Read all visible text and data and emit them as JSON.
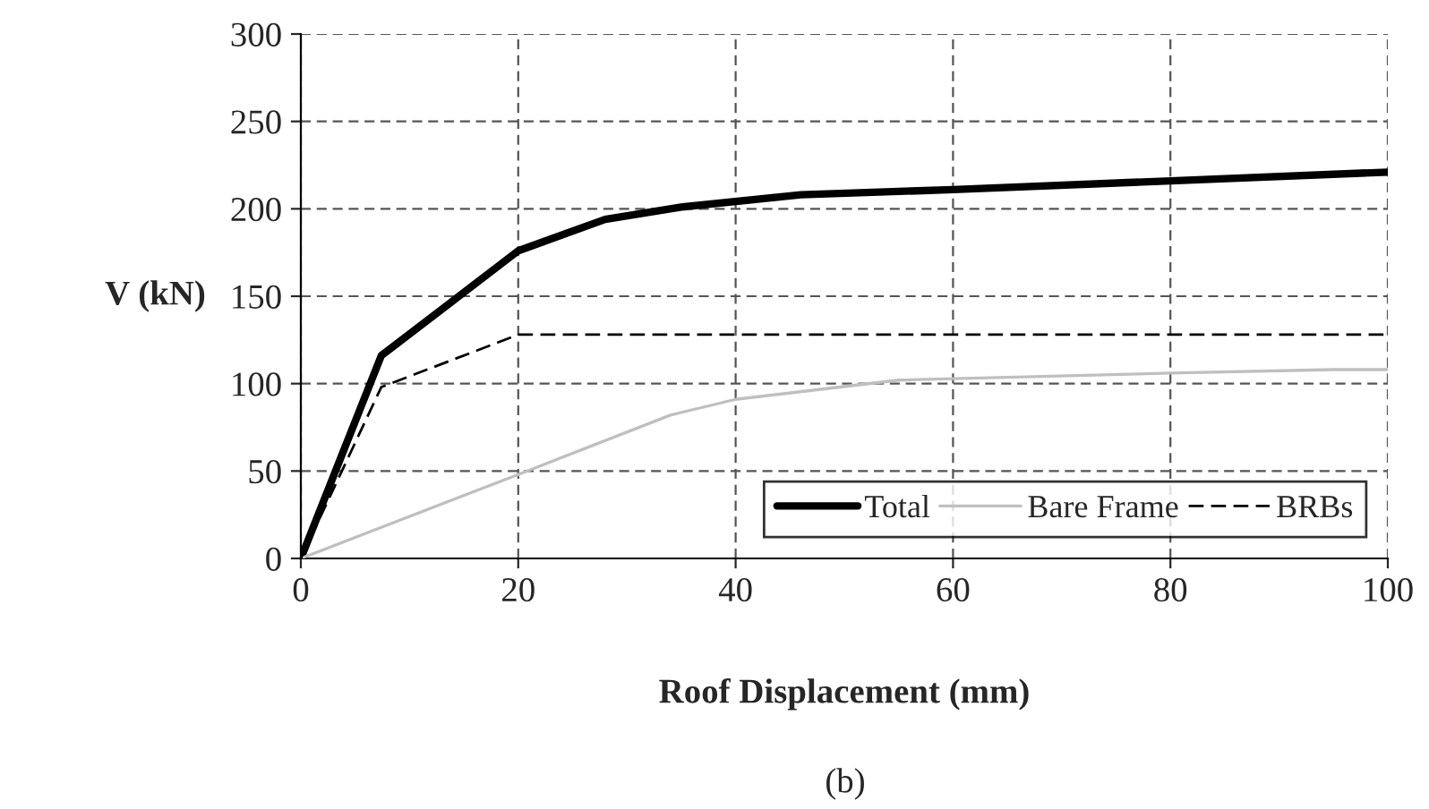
{
  "chart_data": {
    "type": "line",
    "xlabel": "Roof Displacement (mm)",
    "ylabel": "V (kN)",
    "annotations": [
      "(b)"
    ],
    "xlim": [
      0,
      100
    ],
    "xticks": [
      0,
      20,
      40,
      60,
      80,
      100
    ],
    "ylim": [
      0,
      300
    ],
    "yticks": [
      0,
      50,
      100,
      150,
      200,
      250,
      300
    ],
    "grid": true,
    "legend": "bottom right",
    "marker": "none",
    "series": [
      {
        "name": "Total",
        "color": "#000000",
        "line_style": "solid",
        "x": [
          0,
          7.4,
          20,
          28,
          35,
          46,
          60,
          80,
          100
        ],
        "values": [
          0,
          116,
          176,
          194,
          201,
          208,
          211,
          216,
          221
        ]
      },
      {
        "name": "Bare Frame",
        "color": "#bfbfbf",
        "line_style": "solid",
        "x": [
          0,
          20,
          34,
          40,
          55,
          80,
          95,
          100
        ],
        "values": [
          0,
          48,
          82,
          91,
          102,
          106,
          108,
          108
        ]
      },
      {
        "name": "BRBs",
        "color": "#000000",
        "line_style": "dashed",
        "x": [
          0,
          7.4,
          20,
          100
        ],
        "values": [
          0,
          98,
          128,
          128
        ]
      }
    ]
  }
}
